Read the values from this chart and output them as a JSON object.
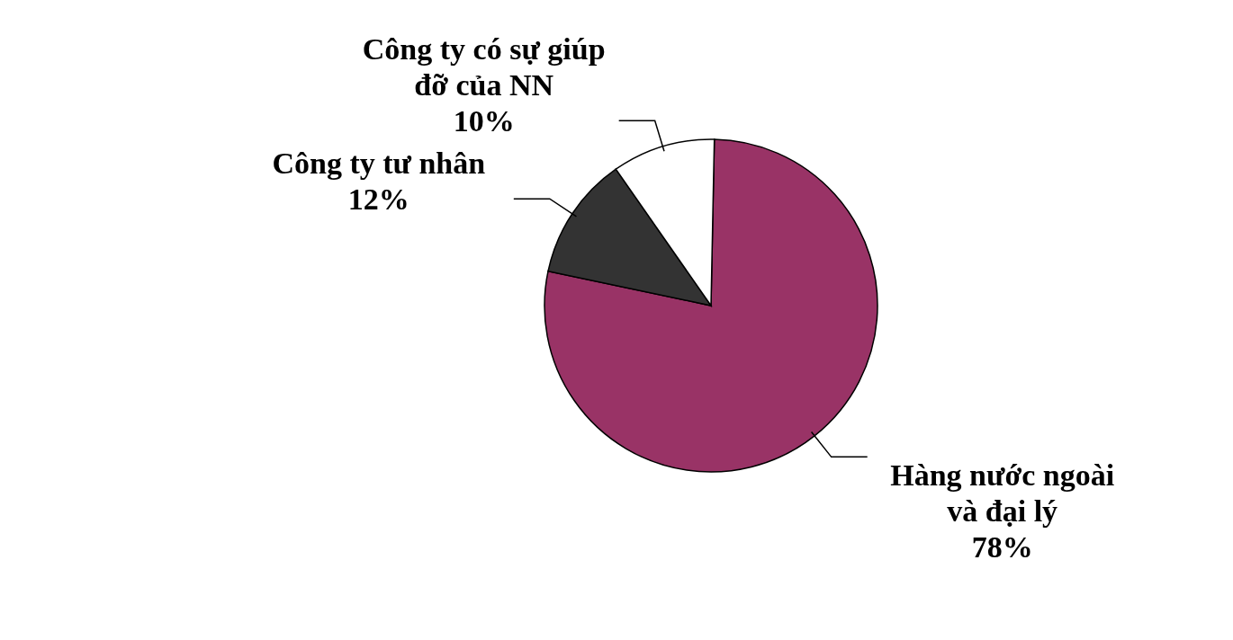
{
  "chart_data": {
    "type": "pie",
    "categories": [
      "Hàng nước ngoài và đại lý",
      "Công ty tư nhân",
      "Công ty có sự giúp đỡ của NN"
    ],
    "values": [
      78,
      12,
      10
    ],
    "colors": [
      "#993366",
      "#333333",
      "#ffffff"
    ],
    "value_labels": [
      "78%",
      "12%",
      "10%"
    ]
  }
}
